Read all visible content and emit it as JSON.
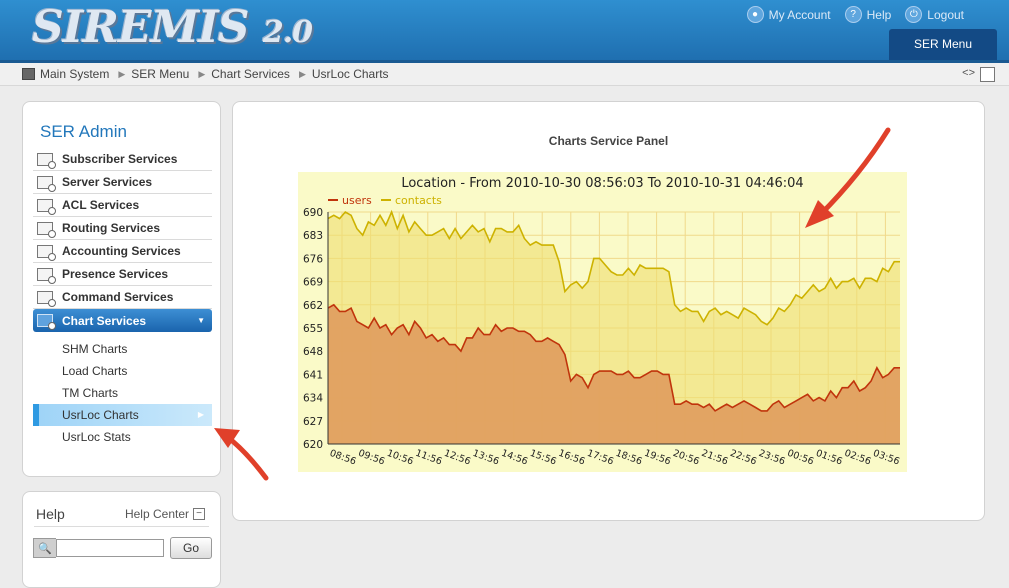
{
  "header": {
    "logo_text": "SIREMIS",
    "logo_version": "2.0",
    "links": [
      {
        "label": "My Account",
        "icon": "account-icon"
      },
      {
        "label": "Help",
        "icon": "help-icon"
      },
      {
        "label": "Logout",
        "icon": "logout-icon"
      }
    ],
    "menu_button": "SER Menu"
  },
  "breadcrumb": {
    "items": [
      "Main System",
      "SER Menu",
      "Chart Services",
      "UsrLoc Charts"
    ],
    "tools_label": "<>"
  },
  "sidebar": {
    "title": "SER Admin",
    "items": [
      {
        "label": "Subscriber Services"
      },
      {
        "label": "Server Services"
      },
      {
        "label": "ACL Services"
      },
      {
        "label": "Routing Services"
      },
      {
        "label": "Accounting Services"
      },
      {
        "label": "Presence Services"
      },
      {
        "label": "Command Services"
      },
      {
        "label": "Chart Services",
        "active": true
      }
    ],
    "subitems": [
      {
        "label": "SHM Charts"
      },
      {
        "label": "Load Charts"
      },
      {
        "label": "TM Charts"
      },
      {
        "label": "UsrLoc Charts",
        "active": true
      },
      {
        "label": "UsrLoc Stats"
      }
    ]
  },
  "help": {
    "title": "Help",
    "center_label": "Help Center",
    "search_value": "",
    "go_label": "Go"
  },
  "main": {
    "panel_title": "Charts Service Panel"
  },
  "colors": {
    "header": "#2a85c8",
    "users": "#c0340c",
    "contacts": "#cdb200",
    "chart_bg": "#fafac8",
    "arrow": "#e0402a"
  },
  "chart_data": {
    "type": "area",
    "title": "Location - From 2010-10-30 08:56:03 To 2010-10-31 04:46:04",
    "legend_position": "top-left",
    "grid": true,
    "ylim": [
      620,
      690
    ],
    "yticks": [
      620,
      627,
      634,
      641,
      648,
      655,
      662,
      669,
      676,
      683,
      690
    ],
    "xticks": [
      "08:56",
      "09:56",
      "10:56",
      "11:56",
      "12:56",
      "13:56",
      "14:56",
      "15:56",
      "16:56",
      "17:56",
      "18:56",
      "19:56",
      "20:56",
      "21:56",
      "22:56",
      "23:56",
      "00:56",
      "01:56",
      "02:56",
      "03:56"
    ],
    "series": [
      {
        "name": "users",
        "color": "#c0340c",
        "values": [
          661,
          662,
          660,
          660,
          661,
          657,
          656,
          655,
          658,
          655,
          656,
          653,
          655,
          656,
          653,
          657,
          655,
          652,
          653,
          651,
          652,
          650,
          650,
          648,
          652,
          652,
          655,
          653,
          653,
          656,
          654,
          655,
          655,
          654,
          654,
          653,
          651,
          651,
          652,
          651,
          650,
          647,
          639,
          641,
          640,
          637,
          641,
          642,
          642,
          642,
          641,
          641,
          642,
          640,
          640,
          641,
          642,
          642,
          641,
          641,
          632,
          632,
          633,
          632,
          632,
          631,
          632,
          630,
          631,
          632,
          631,
          632,
          633,
          632,
          631,
          630,
          630,
          632,
          633,
          631,
          632,
          633,
          634,
          635,
          633,
          634,
          633,
          636,
          634,
          637,
          637,
          639,
          636,
          637,
          639,
          643,
          640,
          641,
          643,
          643
        ]
      },
      {
        "name": "contacts",
        "color": "#cdb200",
        "values": [
          688,
          689,
          688,
          690,
          689,
          685,
          683,
          687,
          686,
          689,
          686,
          690,
          685,
          689,
          684,
          687,
          685,
          683,
          683,
          684,
          685,
          682,
          685,
          682,
          684,
          686,
          684,
          685,
          681,
          685,
          685,
          684,
          684,
          686,
          682,
          680,
          681,
          680,
          680,
          680,
          675,
          666,
          668,
          669,
          667,
          669,
          676,
          676,
          674,
          672,
          671,
          671,
          673,
          671,
          674,
          673,
          673,
          673,
          673,
          672,
          662,
          660,
          661,
          660,
          660,
          657,
          660,
          661,
          659,
          660,
          659,
          658,
          661,
          660,
          659,
          657,
          656,
          658,
          661,
          660,
          662,
          665,
          664,
          666,
          668,
          666,
          667,
          670,
          667,
          669,
          669,
          670,
          667,
          670,
          670,
          669,
          673,
          672,
          675,
          675
        ]
      }
    ]
  }
}
